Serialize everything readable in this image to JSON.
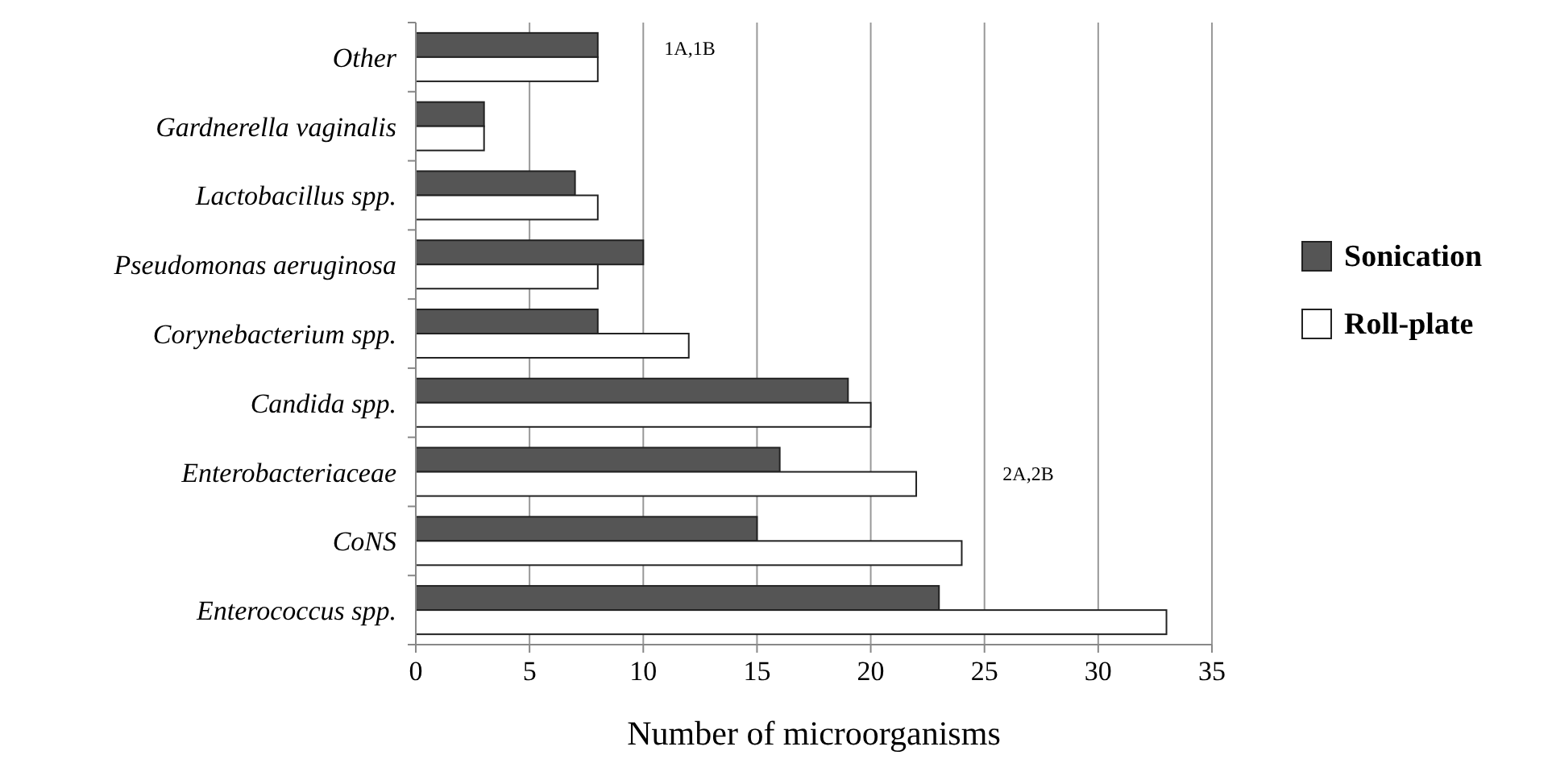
{
  "chart_data": {
    "type": "bar",
    "orientation": "horizontal",
    "xlabel": "Number of microorganisms",
    "categories": [
      "Other",
      "Gardnerella vaginalis",
      "Lactobacillus spp.",
      "Pseudomonas aeruginosa",
      "Corynebacterium spp.",
      "Candida spp.",
      "Enterobacteriaceae",
      "CoNS",
      "Enterococcus spp."
    ],
    "series": [
      {
        "name": "Sonication",
        "color": "#555555",
        "values": [
          8,
          3,
          7,
          10,
          8,
          19,
          16,
          15,
          23
        ]
      },
      {
        "name": "Roll-plate",
        "color": "#ffffff",
        "values": [
          8,
          3,
          8,
          8,
          12,
          20,
          22,
          24,
          33
        ]
      }
    ],
    "xlim": [
      0,
      35
    ],
    "xticks": [
      0,
      5,
      10,
      15,
      20,
      25,
      30,
      35
    ],
    "grid": "x",
    "legend": "right",
    "annotations": [
      "1A,1B",
      "2A,2B"
    ]
  }
}
